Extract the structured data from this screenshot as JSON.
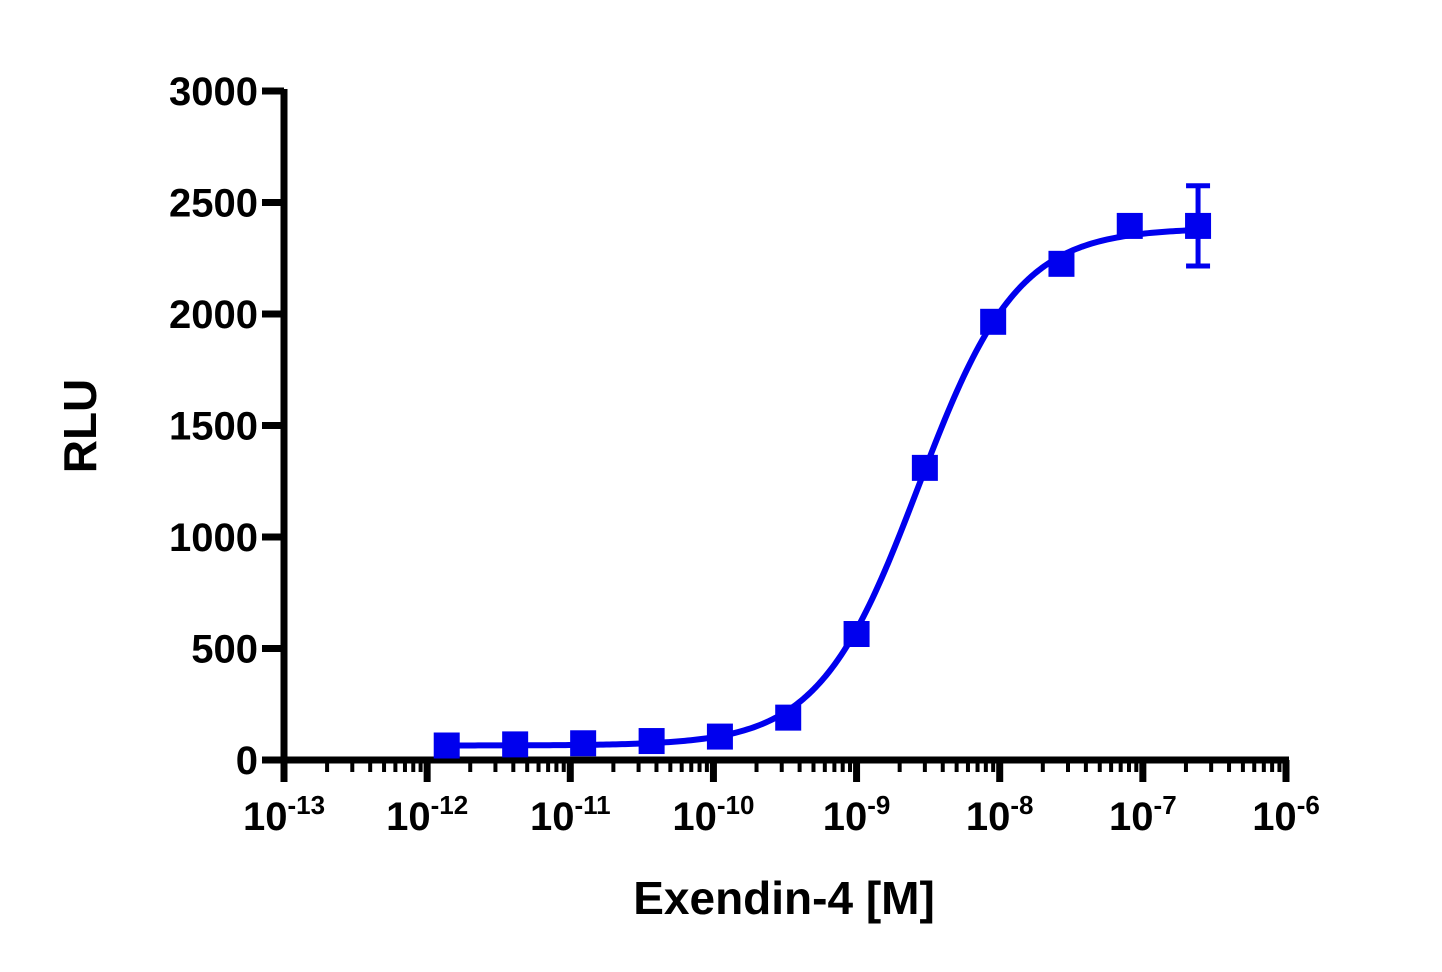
{
  "chart_data": {
    "type": "scatter",
    "xlabel": "Exendin-4 [M]",
    "ylabel": "RLU",
    "x_scale": "log",
    "x_ticks": [
      {
        "base": "10",
        "exp": "-13"
      },
      {
        "base": "10",
        "exp": "-12"
      },
      {
        "base": "10",
        "exp": "-11"
      },
      {
        "base": "10",
        "exp": "-10"
      },
      {
        "base": "10",
        "exp": "-9"
      },
      {
        "base": "10",
        "exp": "-8"
      },
      {
        "base": "10",
        "exp": "-7"
      },
      {
        "base": "10",
        "exp": "-6"
      }
    ],
    "y_ticks": [
      "0",
      "500",
      "1000",
      "1500",
      "2000",
      "2500",
      "3000"
    ],
    "xlim": [
      1e-13,
      1e-06
    ],
    "ylim": [
      0,
      3000
    ],
    "grid": false,
    "color": "#0000ee",
    "series": [
      {
        "x": [
          1.37e-12,
          4.12e-12,
          1.23e-11,
          3.7e-11,
          1.11e-10,
          3.33e-10,
          1e-09,
          3e-09,
          9e-09,
          2.7e-08,
          8.1e-08,
          2.43e-07
        ],
        "y": [
          65,
          70,
          75,
          85,
          105,
          190,
          565,
          1310,
          1965,
          2225,
          2395,
          2395
        ],
        "error": [
          0,
          0,
          0,
          0,
          0,
          0,
          0,
          0,
          0,
          0,
          45,
          180
        ]
      }
    ],
    "fit": {
      "model": "sigmoidal dose-response",
      "bottom": 65,
      "top": 2385,
      "ec50": 2.7e-09,
      "hill": 1.25,
      "x_range": [
        1.37e-12,
        2.43e-07
      ]
    }
  }
}
